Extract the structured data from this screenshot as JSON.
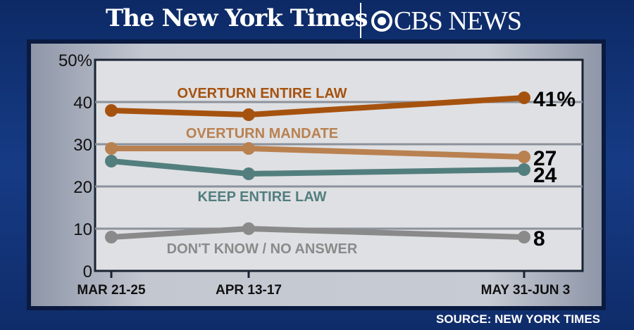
{
  "header": {
    "nyt_logo": "The New York Times",
    "cbs_logo": "CBS NEWS"
  },
  "source": "SOURCE: NEW YORK TIMES",
  "chart_data": {
    "type": "line",
    "categories": [
      "MAR 21-25",
      "APR 13-17",
      "MAY 31-JUN 3"
    ],
    "ylim": [
      0,
      50
    ],
    "yticks": [
      "0",
      "10",
      "20",
      "30",
      "40",
      "50%"
    ],
    "grid": true,
    "series": [
      {
        "name": "OVERTURN ENTIRE LAW",
        "values": [
          38,
          37,
          41
        ],
        "color": "#a6520f",
        "end_label": "41%"
      },
      {
        "name": "OVERTURN MANDATE",
        "values": [
          29,
          29,
          27
        ],
        "color": "#b98150",
        "end_label": "27"
      },
      {
        "name": "KEEP ENTIRE LAW",
        "values": [
          26,
          23,
          24
        ],
        "color": "#527e7e",
        "end_label": "24"
      },
      {
        "name": "DON'T KNOW / NO ANSWER",
        "values": [
          8,
          10,
          8
        ],
        "color": "#8a8a8a",
        "end_label": "8"
      }
    ]
  }
}
